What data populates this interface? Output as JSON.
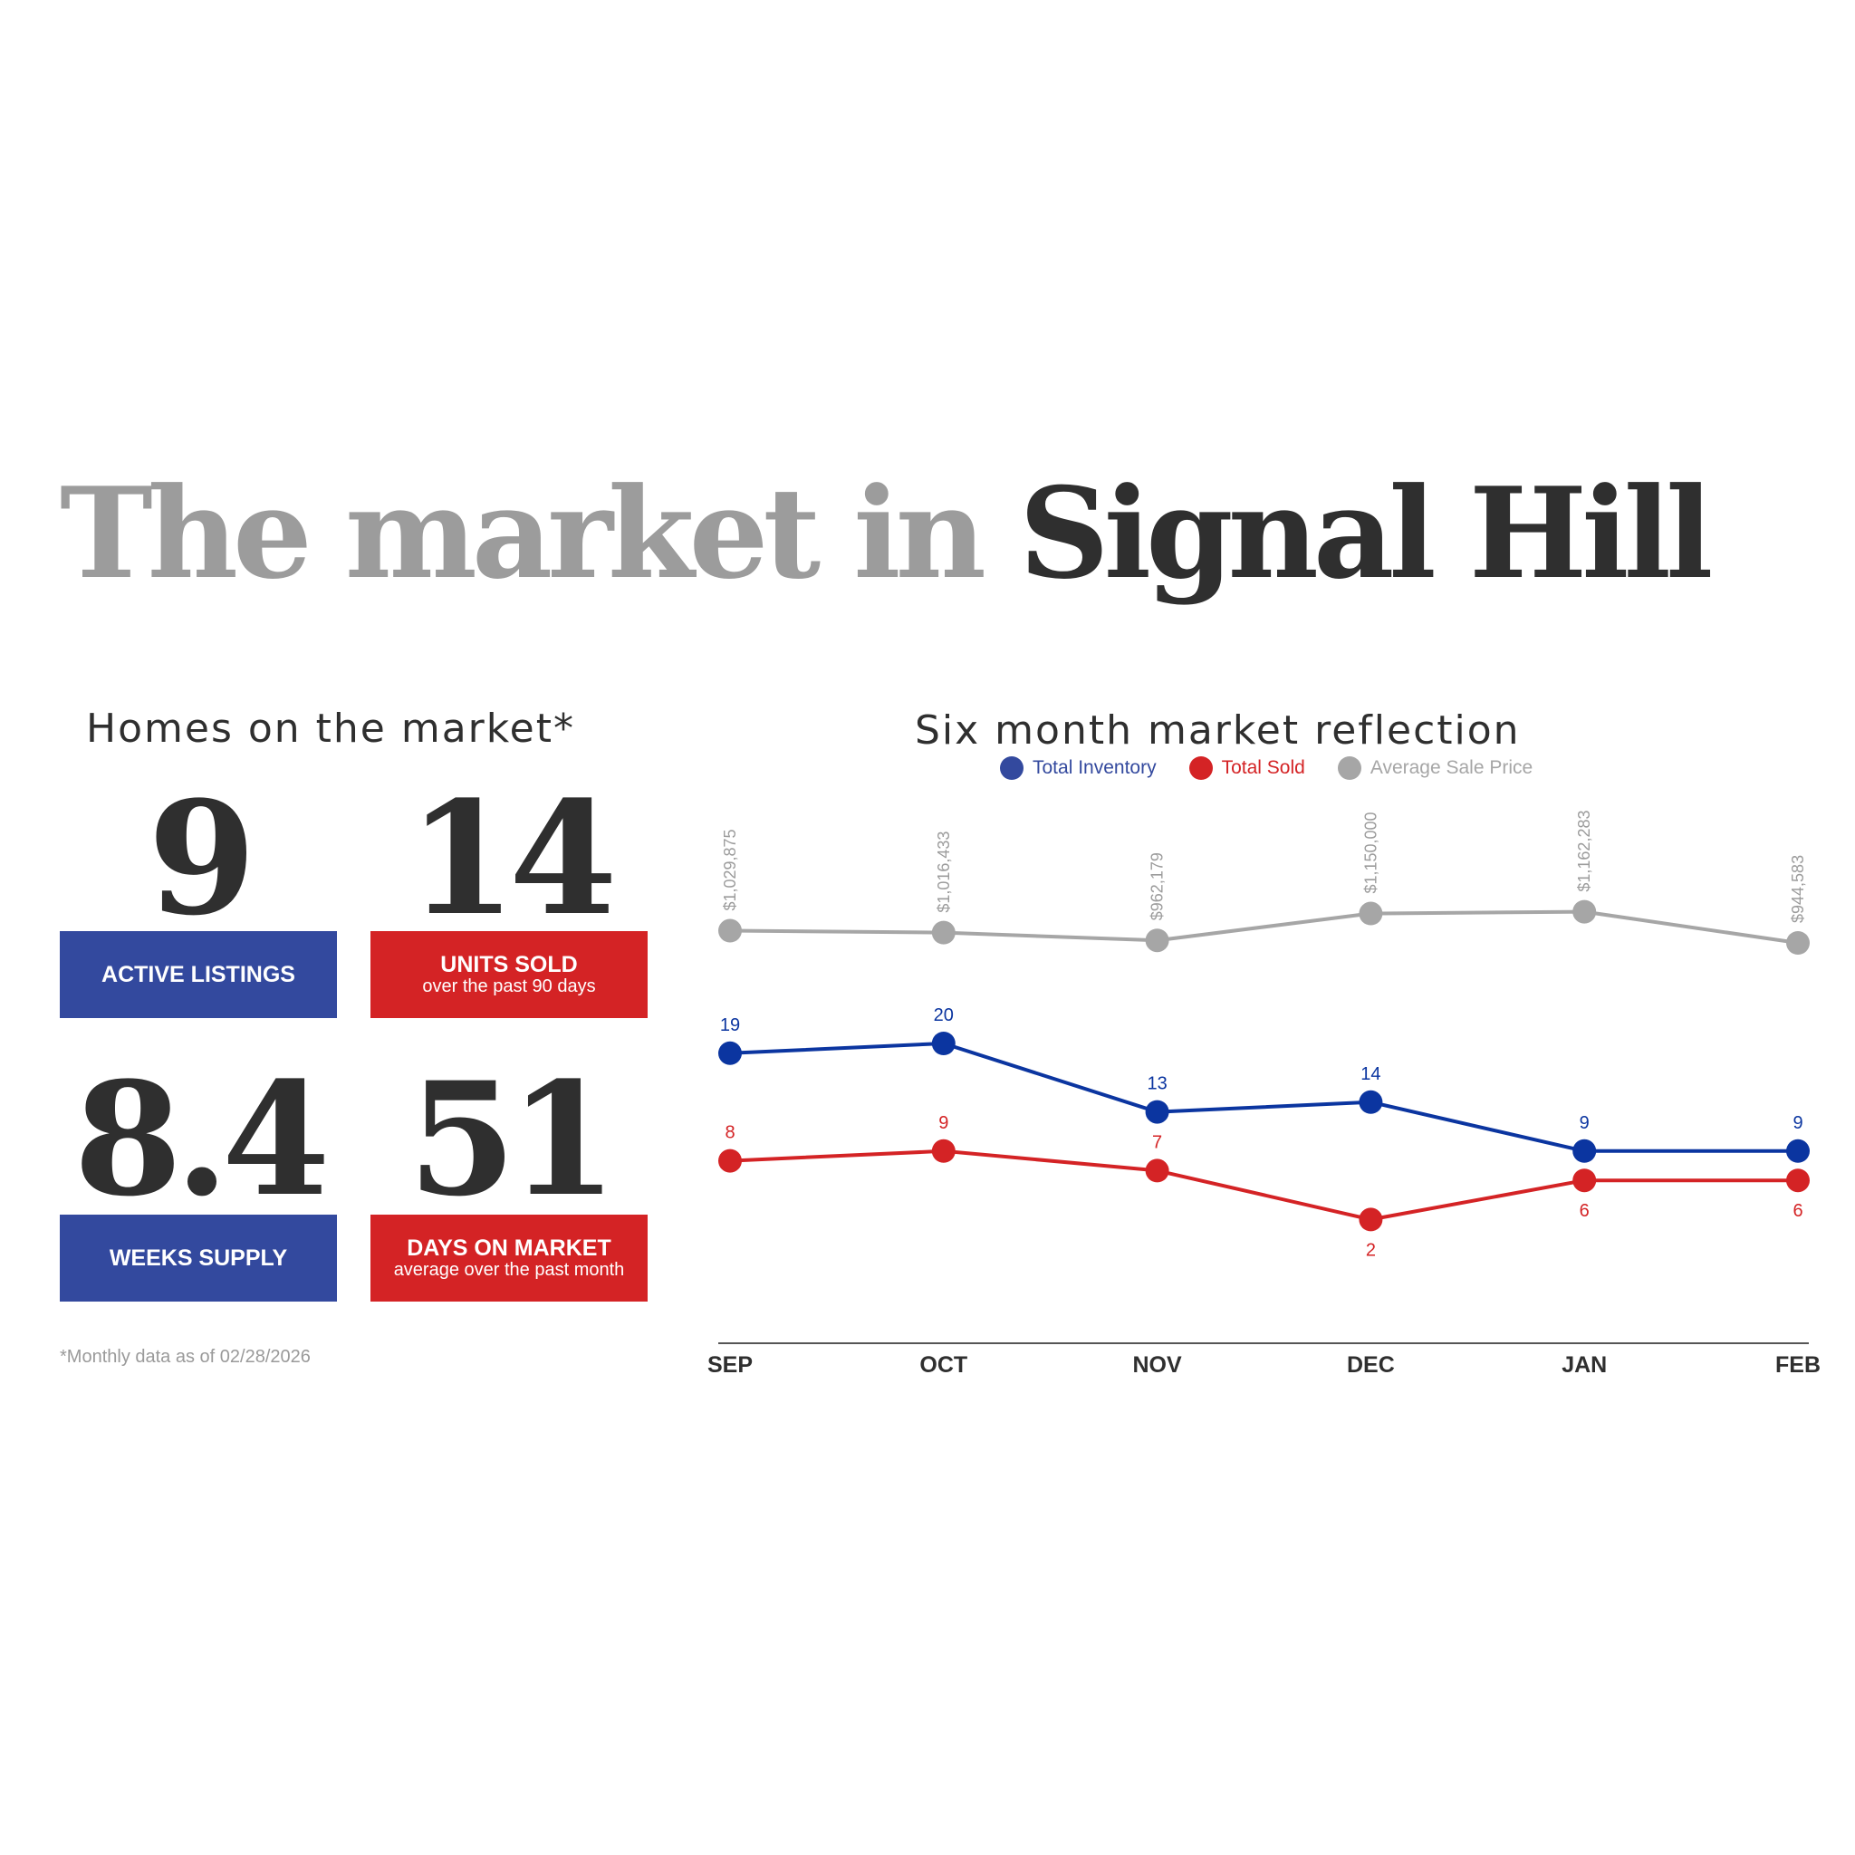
{
  "title": {
    "prefix": "The market in",
    "city": "Signal Hill"
  },
  "homes_section": {
    "title": "Homes on the market*",
    "stats": [
      {
        "value": "9",
        "label": "ACTIVE LISTINGS",
        "sub": ""
      },
      {
        "value": "14",
        "label": "UNITS SOLD",
        "sub": "over the past 90 days"
      },
      {
        "value": "8.4",
        "label": "WEEKS SUPPLY",
        "sub": ""
      },
      {
        "value": "51",
        "label": "DAYS ON MARKET",
        "sub": "average over the past month"
      }
    ],
    "footnote": "*Monthly data as of 02/28/2026"
  },
  "colors": {
    "blue": "#33499e",
    "red": "#d42325",
    "gray": "#a6a6a6",
    "line_blue": "#0b35a0",
    "line_red": "#d42325",
    "dark": "#2f2f2f"
  },
  "chart_data": {
    "type": "line",
    "title": "Six month market reflection",
    "categories": [
      "SEP",
      "OCT",
      "NOV",
      "DEC",
      "JAN",
      "FEB"
    ],
    "legend_position": "top",
    "series": [
      {
        "name": "Total Inventory",
        "values": [
          19,
          20,
          13,
          14,
          9,
          9
        ],
        "labels": [
          "19",
          "20",
          "13",
          "14",
          "9",
          "9"
        ]
      },
      {
        "name": "Total Sold",
        "values": [
          8,
          9,
          7,
          2,
          6,
          6
        ],
        "labels": [
          "8",
          "9",
          "7",
          "2",
          "6",
          "6"
        ]
      },
      {
        "name": "Average Sale Price",
        "values": [
          1029875,
          1016433,
          962179,
          1150000,
          1162283,
          944583
        ],
        "labels": [
          "$1,029,875",
          "$1,016,433",
          "$962,179",
          "$1,150,000",
          "$1,162,283",
          "$944,583"
        ]
      }
    ]
  }
}
